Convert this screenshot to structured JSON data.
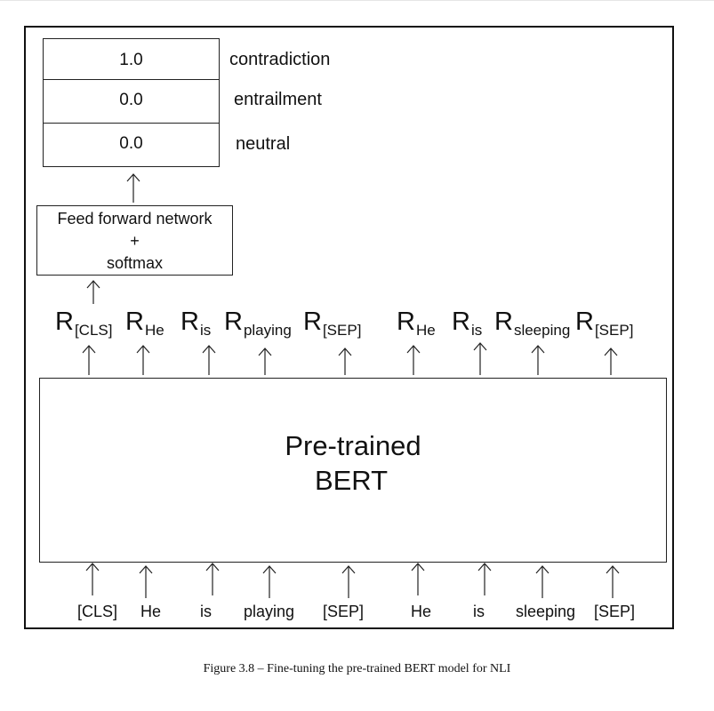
{
  "output": {
    "rows": [
      {
        "value": "1.0",
        "label": "contradiction"
      },
      {
        "value": "0.0",
        "label": "entrailment"
      },
      {
        "value": "0.0",
        "label": "neutral"
      }
    ]
  },
  "ffn": {
    "line1": "Feed forward network",
    "line2": "+",
    "line3": "softmax"
  },
  "bert": {
    "line1": "Pre-trained",
    "line2": "BERT"
  },
  "representations": [
    {
      "main": "R",
      "sub": "[CLS]"
    },
    {
      "main": "R",
      "sub": "He"
    },
    {
      "main": "R",
      "sub": "is"
    },
    {
      "main": "R",
      "sub": "playing"
    },
    {
      "main": "R",
      "sub": "[SEP]"
    },
    {
      "main": "R",
      "sub": "He"
    },
    {
      "main": "R",
      "sub": "is"
    },
    {
      "main": "R",
      "sub": "sleeping"
    },
    {
      "main": "R",
      "sub": "[SEP]"
    }
  ],
  "tokens": [
    "[CLS]",
    "He",
    "is",
    "playing",
    "[SEP]",
    "He",
    "is",
    "sleeping",
    "[SEP]"
  ],
  "caption": "Figure 3.8 – Fine-tuning the pre-trained BERT model for NLI"
}
